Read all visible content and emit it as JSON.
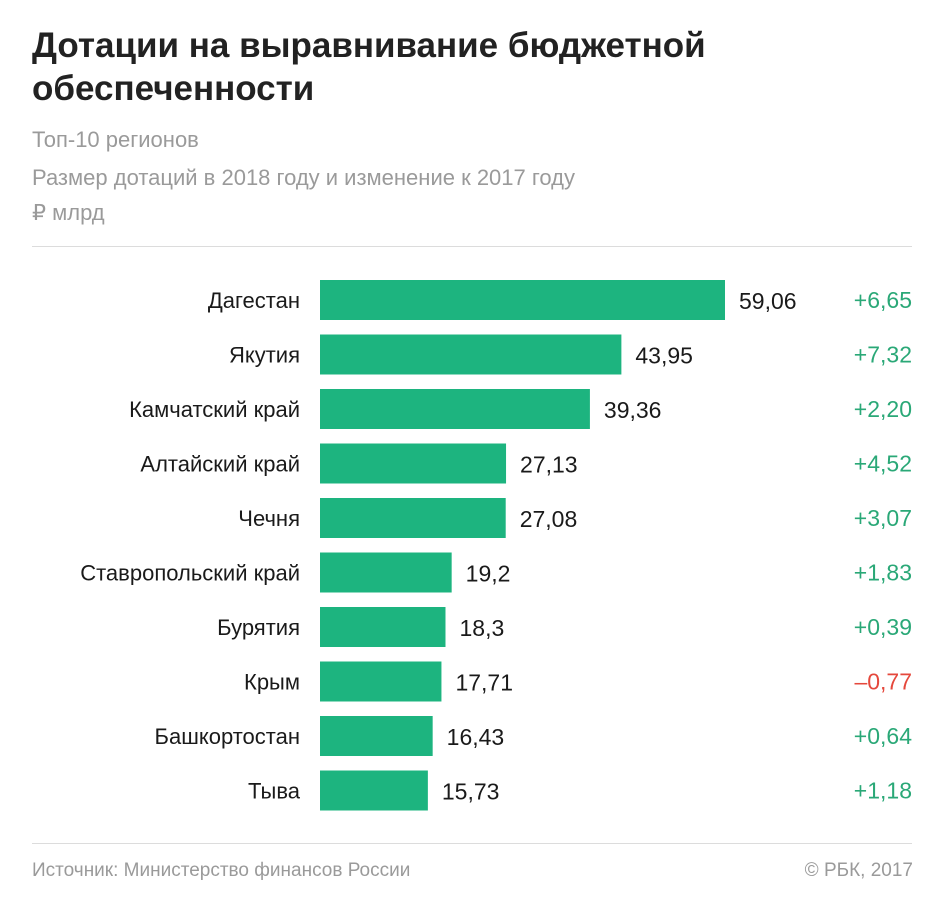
{
  "title": "Дотации на выравнивание бюджетной обеспеченности",
  "subtitle": "Топ-10 регионов",
  "description": "Размер дотаций в 2018 году и изменение к 2017 году",
  "unit": "₽ млрд",
  "source": "Источник: Министерство финансов России",
  "copyright": "© РБК, 2017",
  "colors": {
    "bar": "#1db47f",
    "positive": "#2aa877",
    "negative": "#e5483c",
    "text": "#1a1a1a"
  },
  "chart_data": {
    "type": "bar",
    "orientation": "horizontal",
    "categories": [
      "Дагестан",
      "Якутия",
      "Камчатский край",
      "Алтайский край",
      "Чечня",
      "Ставропольский край",
      "Бурятия",
      "Крым",
      "Башкортостан",
      "Тыва"
    ],
    "series": [
      {
        "values": [
          59.06,
          43.95,
          39.36,
          27.13,
          27.08,
          19.2,
          18.3,
          17.71,
          16.43,
          15.73
        ]
      },
      {
        "values": [
          6.65,
          7.32,
          2.2,
          4.52,
          3.07,
          1.83,
          0.39,
          -0.77,
          0.64,
          1.18
        ]
      }
    ],
    "value_labels": [
      "59,06",
      "43,95",
      "39,36",
      "27,13",
      "27,08",
      "19,2",
      "18,3",
      "17,71",
      "16,43",
      "15,73"
    ],
    "change_labels": [
      "+6,65",
      "+7,32",
      "+2,20",
      "+4,52",
      "+3,07",
      "+1,83",
      "+0,39",
      "–0,77",
      "+0,64",
      "+1,18"
    ],
    "xlim": [
      0,
      59.06
    ],
    "grid": false,
    "legend": "none"
  }
}
